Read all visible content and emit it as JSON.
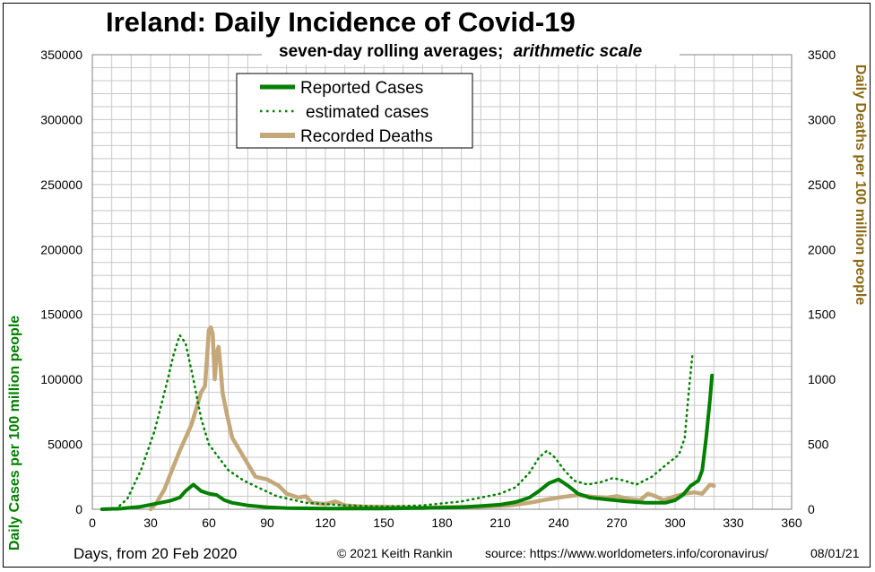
{
  "colors": {
    "reported": "#008000",
    "estimated": "#008000",
    "deaths": "#c4a87a",
    "grid": "#c8c8c8",
    "right_axis_label": "#8b6914"
  },
  "chart_data": {
    "type": "line",
    "title": "Ireland: Daily Incidence of Covid-19",
    "subtitle_bold": "seven-day rolling averages;",
    "subtitle_italic": "arithmetic scale",
    "xlabel": "Days, from 20 Feb 2020",
    "ylabel_left": "Daily Cases per 100 million people",
    "ylabel_right": "Daily Deaths per 100 million people",
    "xlim": [
      0,
      360
    ],
    "ylim_left": [
      0,
      350000
    ],
    "ylim_right": [
      0,
      3500
    ],
    "x_ticks": [
      0,
      30,
      60,
      90,
      120,
      150,
      180,
      210,
      240,
      270,
      300,
      330,
      360
    ],
    "y_ticks_left": [
      0,
      50000,
      100000,
      150000,
      200000,
      250000,
      300000,
      350000
    ],
    "y_ticks_right": [
      0,
      500,
      1000,
      1500,
      2000,
      2500,
      3000,
      3500
    ],
    "grid": true,
    "legend_position": "top-left",
    "series": [
      {
        "name": "Reported Cases",
        "axis": "left",
        "style": "solid",
        "points": [
          [
            5,
            0
          ],
          [
            15,
            500
          ],
          [
            25,
            2000
          ],
          [
            30,
            3500
          ],
          [
            35,
            5000
          ],
          [
            40,
            6500
          ],
          [
            45,
            9000
          ],
          [
            48,
            14000
          ],
          [
            52,
            19000
          ],
          [
            56,
            14000
          ],
          [
            60,
            12000
          ],
          [
            64,
            11000
          ],
          [
            68,
            7000
          ],
          [
            72,
            5000
          ],
          [
            80,
            3000
          ],
          [
            90,
            1500
          ],
          [
            100,
            800
          ],
          [
            120,
            500
          ],
          [
            150,
            500
          ],
          [
            170,
            1000
          ],
          [
            190,
            1500
          ],
          [
            200,
            2500
          ],
          [
            210,
            3500
          ],
          [
            218,
            5500
          ],
          [
            225,
            9000
          ],
          [
            230,
            14000
          ],
          [
            235,
            20000
          ],
          [
            240,
            23000
          ],
          [
            245,
            18000
          ],
          [
            250,
            12000
          ],
          [
            256,
            9000
          ],
          [
            265,
            7500
          ],
          [
            275,
            6000
          ],
          [
            285,
            5000
          ],
          [
            295,
            5000
          ],
          [
            300,
            7000
          ],
          [
            304,
            11000
          ],
          [
            308,
            18000
          ],
          [
            312,
            22000
          ],
          [
            314,
            30000
          ],
          [
            316,
            55000
          ],
          [
            318,
            85000
          ],
          [
            319,
            103000
          ]
        ]
      },
      {
        "name": "estimated cases",
        "axis": "left",
        "style": "dotted",
        "points": [
          [
            12,
            0
          ],
          [
            18,
            8000
          ],
          [
            25,
            30000
          ],
          [
            32,
            60000
          ],
          [
            38,
            95000
          ],
          [
            42,
            120000
          ],
          [
            45,
            134000
          ],
          [
            48,
            128000
          ],
          [
            52,
            100000
          ],
          [
            56,
            70000
          ],
          [
            60,
            50000
          ],
          [
            65,
            40000
          ],
          [
            70,
            30000
          ],
          [
            78,
            22000
          ],
          [
            85,
            17000
          ],
          [
            95,
            10000
          ],
          [
            110,
            5000
          ],
          [
            130,
            3000
          ],
          [
            150,
            2000
          ],
          [
            170,
            3000
          ],
          [
            190,
            6000
          ],
          [
            200,
            9000
          ],
          [
            210,
            12000
          ],
          [
            218,
            17000
          ],
          [
            225,
            28000
          ],
          [
            230,
            40000
          ],
          [
            234,
            45000
          ],
          [
            238,
            40000
          ],
          [
            243,
            30000
          ],
          [
            248,
            22000
          ],
          [
            255,
            19000
          ],
          [
            262,
            21000
          ],
          [
            268,
            24000
          ],
          [
            274,
            22000
          ],
          [
            280,
            19000
          ],
          [
            288,
            25000
          ],
          [
            296,
            35000
          ],
          [
            302,
            42000
          ],
          [
            305,
            55000
          ],
          [
            307,
            90000
          ],
          [
            309,
            120000
          ]
        ]
      },
      {
        "name": "Recorded Deaths",
        "axis": "right",
        "style": "solid-thick",
        "points": [
          [
            30,
            0
          ],
          [
            33,
            50
          ],
          [
            37,
            150
          ],
          [
            41,
            300
          ],
          [
            45,
            450
          ],
          [
            48,
            550
          ],
          [
            51,
            650
          ],
          [
            54,
            800
          ],
          [
            56,
            900
          ],
          [
            58,
            950
          ],
          [
            60,
            1380
          ],
          [
            61,
            1400
          ],
          [
            62,
            1350
          ],
          [
            63,
            1000
          ],
          [
            64,
            1200
          ],
          [
            65,
            1250
          ],
          [
            66,
            1100
          ],
          [
            67,
            900
          ],
          [
            69,
            750
          ],
          [
            72,
            550
          ],
          [
            76,
            450
          ],
          [
            80,
            350
          ],
          [
            84,
            250
          ],
          [
            90,
            230
          ],
          [
            96,
            180
          ],
          [
            100,
            120
          ],
          [
            106,
            90
          ],
          [
            110,
            100
          ],
          [
            113,
            50
          ],
          [
            120,
            40
          ],
          [
            125,
            60
          ],
          [
            130,
            30
          ],
          [
            140,
            20
          ],
          [
            150,
            20
          ],
          [
            160,
            15
          ],
          [
            170,
            10
          ],
          [
            180,
            15
          ],
          [
            200,
            20
          ],
          [
            215,
            30
          ],
          [
            225,
            50
          ],
          [
            232,
            70
          ],
          [
            240,
            90
          ],
          [
            250,
            110
          ],
          [
            258,
            95
          ],
          [
            265,
            90
          ],
          [
            270,
            100
          ],
          [
            276,
            80
          ],
          [
            282,
            70
          ],
          [
            286,
            120
          ],
          [
            290,
            100
          ],
          [
            294,
            70
          ],
          [
            300,
            100
          ],
          [
            305,
            120
          ],
          [
            310,
            130
          ],
          [
            314,
            120
          ],
          [
            318,
            190
          ],
          [
            320,
            180
          ]
        ]
      }
    ]
  },
  "footer": {
    "copyright": "© 2021  Keith Rankin",
    "source": "source:  https://www.worldometers.info/coronavirus/",
    "date": "08/01/21"
  }
}
